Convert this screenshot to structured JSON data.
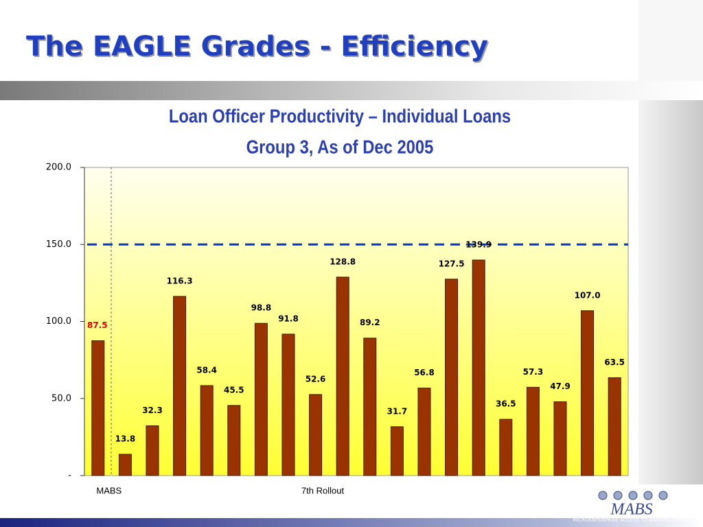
{
  "slide_title": "The EAGLE Grades - Efficiency",
  "logo": {
    "name": "MABS",
    "tagline": "MICROENTERPRISE ACCESS TO BANKING SERVICES"
  },
  "chart_data": {
    "type": "bar",
    "title": [
      "Loan Officer Productivity – Individual Loans",
      "Group 3, As of Dec 2005"
    ],
    "categories": [
      "MABS",
      null,
      null,
      null,
      null,
      null,
      null,
      null,
      null,
      null,
      null,
      null,
      null,
      null,
      null,
      null,
      null,
      null,
      null,
      null
    ],
    "group_label": "7th Rollout",
    "values": [
      87.5,
      13.8,
      32.3,
      116.3,
      58.4,
      45.5,
      98.8,
      91.8,
      52.6,
      128.8,
      89.2,
      31.7,
      56.8,
      127.5,
      139.9,
      36.5,
      57.3,
      47.9,
      107.0,
      63.5
    ],
    "value_labels": [
      "87.5",
      "13.8",
      "32.3",
      "116.3",
      "58.4",
      "45.5",
      "98.8",
      "91.8",
      "52.6",
      "128.8",
      "89.2",
      "31.7",
      "56.8",
      "127.5",
      "139.9",
      "36.5",
      "57.3",
      "47.9",
      "107.0",
      "63.5"
    ],
    "color": "#993300",
    "highlight": {
      "index": 0,
      "color": "#e00000"
    },
    "reference_line": {
      "value": 150,
      "color": "#0033cc"
    },
    "ylim": [
      0,
      200
    ],
    "yticks": [
      {
        "value": 0,
        "label": "-"
      },
      {
        "value": 50,
        "label": "50.0"
      },
      {
        "value": 100,
        "label": "100.0"
      },
      {
        "value": 150,
        "label": "150.0"
      },
      {
        "value": 200,
        "label": "200.0"
      }
    ]
  }
}
